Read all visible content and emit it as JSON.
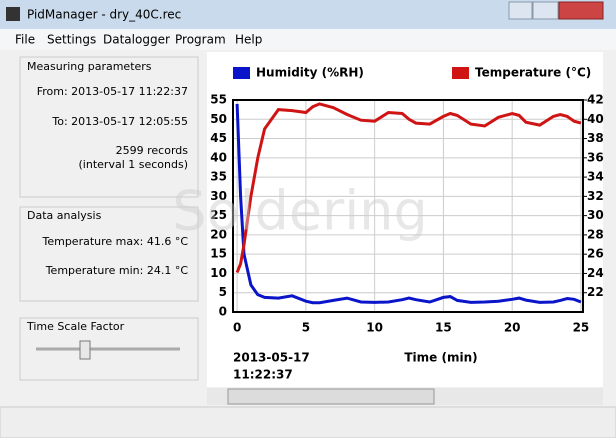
{
  "window": {
    "title": "PidManager - dry_40C.rec"
  },
  "menu": [
    "File",
    "Settings",
    "Datalogger",
    "Program",
    "Help"
  ],
  "measuring": {
    "title": "Measuring parameters",
    "from": "From: 2013-05-17 11:22:37",
    "to": "To: 2013-05-17 12:05:55",
    "records": "2599 records",
    "interval": "(interval 1 seconds)"
  },
  "analysis": {
    "title": "Data analysis",
    "max": "Temperature max: 41.6 °C",
    "min": "Temperature min: 24.1 °C"
  },
  "time_scale": {
    "title": "Time Scale Factor"
  },
  "watermark": "Soldering",
  "chart_data": {
    "type": "line",
    "xlabel": "Time (min)",
    "start_date": "2013-05-17",
    "start_time": "11:22:37",
    "x": [
      0,
      0.25,
      0.5,
      1,
      1.5,
      2,
      3,
      4,
      5,
      5.5,
      6,
      7,
      8,
      9,
      10,
      11,
      12,
      12.5,
      13,
      14,
      15,
      15.5,
      16,
      17,
      18,
      19,
      20,
      20.5,
      21,
      22,
      23,
      23.5,
      24,
      24.5,
      25
    ],
    "series": [
      {
        "name": "Humidity (%RH)",
        "color": "#0a14c8",
        "values": [
          54,
          30,
          15,
          7,
          4.5,
          3.8,
          3.6,
          4.2,
          2.8,
          2.4,
          2.4,
          3,
          3.6,
          2.6,
          2.5,
          2.6,
          3.2,
          3.6,
          3.2,
          2.6,
          3.8,
          4,
          3,
          2.5,
          2.6,
          2.8,
          3.3,
          3.6,
          3.1,
          2.5,
          2.6,
          3,
          3.5,
          3.3,
          2.6
        ]
      },
      {
        "name": "Temperature (°C)",
        "color": "#d01414",
        "axis": "y2",
        "values": [
          24.1,
          25,
          27,
          32,
          36,
          39,
          41,
          40.9,
          40.7,
          41.3,
          41.6,
          41.2,
          40.5,
          39.9,
          39.8,
          40.7,
          40.6,
          40,
          39.6,
          39.5,
          40.3,
          40.6,
          40.4,
          39.5,
          39.3,
          40.2,
          40.6,
          40.4,
          39.7,
          39.4,
          40.3,
          40.5,
          40.3,
          39.8,
          39.6
        ]
      }
    ],
    "xlim": [
      -0.3,
      25.15
    ],
    "xticks": [
      0,
      5,
      10,
      15,
      20,
      25
    ],
    "ylim": [
      0,
      55
    ],
    "yticks": [
      0,
      5,
      10,
      15,
      20,
      25,
      30,
      35,
      40,
      45,
      50,
      55
    ],
    "y2lim": [
      20,
      42
    ],
    "y2ticks": [
      22,
      24,
      26,
      28,
      30,
      32,
      34,
      36,
      38,
      40,
      42
    ],
    "grid": true
  }
}
